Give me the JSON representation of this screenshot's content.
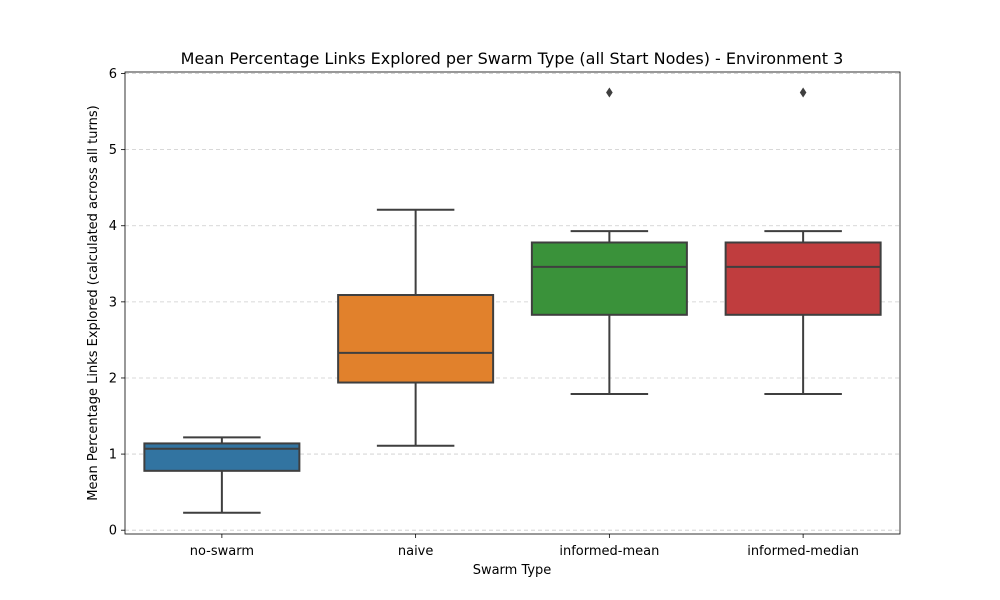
{
  "chart_data": {
    "type": "box",
    "title": "Mean Percentage Links Explored per Swarm Type (all Start Nodes) - Environment 3",
    "xlabel": "Swarm Type",
    "ylabel": "Mean Percentage Links Explored (calculated across all turns)",
    "ylim": [
      -0.05,
      6.02
    ],
    "yticks": [
      0,
      1,
      2,
      3,
      4,
      5,
      6
    ],
    "grid": "y-dashed",
    "categories": [
      "no-swarm",
      "naive",
      "informed-mean",
      "informed-median"
    ],
    "boxes": [
      {
        "category": "no-swarm",
        "color": "#3274a1",
        "whisker_low": 0.23,
        "q1": 0.78,
        "median": 1.07,
        "q3": 1.14,
        "whisker_high": 1.22,
        "outliers": []
      },
      {
        "category": "naive",
        "color": "#e1812c",
        "whisker_low": 1.11,
        "q1": 1.94,
        "median": 2.33,
        "q3": 3.09,
        "whisker_high": 4.21,
        "outliers": []
      },
      {
        "category": "informed-mean",
        "color": "#3a923a",
        "whisker_low": 1.79,
        "q1": 2.83,
        "median": 3.46,
        "q3": 3.78,
        "whisker_high": 3.93,
        "outliers": [
          5.75
        ]
      },
      {
        "category": "informed-median",
        "color": "#c03d3e",
        "whisker_low": 1.79,
        "q1": 2.83,
        "median": 3.46,
        "q3": 3.78,
        "whisker_high": 3.93,
        "outliers": [
          5.75
        ]
      }
    ]
  }
}
